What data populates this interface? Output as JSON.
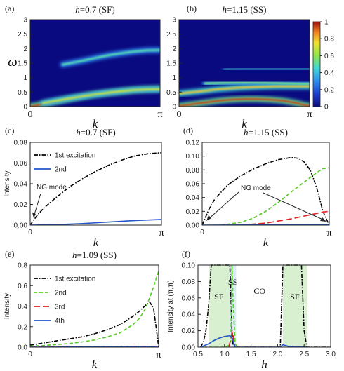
{
  "colorbar": {
    "ticks": [
      "1",
      "0.8",
      "0.6",
      "0.4",
      "0.2",
      "0"
    ]
  },
  "chart_data": [
    {
      "panel": "(a)",
      "type": "heatmap",
      "title": "h=0.7 (SF)",
      "xlabel": "k",
      "ylabel": "ω",
      "x_ticks": [
        "0",
        "π"
      ],
      "y_ticks": [
        "0",
        "0.5",
        "1",
        "1.5",
        "2",
        "2.5",
        "3"
      ],
      "ylim": [
        0,
        3
      ],
      "bands": [
        {
          "x": [
            0,
            0.1,
            0.2,
            0.3,
            0.4,
            0.5,
            0.6,
            0.7,
            0.8,
            0.9,
            1.0
          ],
          "y": [
            0,
            0.09,
            0.18,
            0.27,
            0.35,
            0.42,
            0.48,
            0.53,
            0.57,
            0.6,
            0.61
          ],
          "intensity": 0.95
        },
        {
          "x": [
            0.1,
            0.2,
            0.3,
            0.4,
            0.5,
            0.6,
            0.7,
            0.8,
            0.9,
            1.0
          ],
          "y": [
            0.12,
            0.2,
            0.28,
            0.35,
            0.42,
            0.48,
            0.53,
            0.57,
            0.59,
            0.6
          ],
          "intensity": 0.7
        },
        {
          "x": [
            0.25,
            0.4,
            0.5,
            0.6,
            0.7,
            0.8,
            0.9,
            1.0
          ],
          "y": [
            1.45,
            1.58,
            1.68,
            1.77,
            1.84,
            1.9,
            1.94,
            1.95
          ],
          "intensity": 0.5
        }
      ]
    },
    {
      "panel": "(b)",
      "type": "heatmap",
      "title": "h=1.15 (SS)",
      "xlabel": "k",
      "ylabel": "",
      "x_ticks": [
        "0",
        "π"
      ],
      "y_ticks": [
        "0",
        "0.5",
        "1",
        "1.5",
        "2",
        "2.5",
        "3"
      ],
      "ylim": [
        0,
        3
      ],
      "colorbar_range": [
        0,
        1
      ],
      "bands": [
        {
          "x": [
            0,
            0.1,
            0.2,
            0.3,
            0.4,
            0.5,
            0.6,
            0.7,
            0.8,
            0.9,
            0.95,
            1.0
          ],
          "y": [
            0.02,
            0.08,
            0.14,
            0.2,
            0.24,
            0.26,
            0.26,
            0.24,
            0.2,
            0.12,
            0.06,
            0.02
          ],
          "intensity": 0.95
        },
        {
          "x": [
            0,
            0.15,
            0.3,
            0.45,
            0.6,
            0.75,
            0.9,
            1.0
          ],
          "y": [
            0.45,
            0.52,
            0.6,
            0.65,
            0.68,
            0.7,
            0.7,
            0.7
          ],
          "intensity": 0.8
        },
        {
          "x": [
            0.2,
            0.35,
            0.5,
            0.65,
            0.8,
            0.95,
            1.0
          ],
          "y": [
            0.8,
            0.82,
            0.83,
            0.82,
            0.8,
            0.78,
            0.78
          ],
          "intensity": 0.55
        },
        {
          "x": [
            0.35,
            0.5,
            0.7,
            0.9,
            1.0
          ],
          "y": [
            1.28,
            1.3,
            1.3,
            1.3,
            1.3
          ],
          "intensity": 0.45
        }
      ]
    },
    {
      "panel": "(c)",
      "type": "line",
      "title": "h=0.7 (SF)",
      "xlabel": "k",
      "ylabel": "Intensity",
      "x_ticks": [
        "0",
        "π"
      ],
      "y_ticks": [
        "0.00",
        "0.02",
        "0.04",
        "0.06",
        "0.08"
      ],
      "xlim": [
        0,
        1
      ],
      "ylim": [
        0,
        0.08
      ],
      "annotation": "NG mode",
      "series": [
        {
          "name": "1st excitation",
          "style": "dashdot",
          "color": "#000000",
          "x": [
            0,
            0.05,
            0.1,
            0.2,
            0.3,
            0.4,
            0.5,
            0.6,
            0.7,
            0.8,
            0.9,
            1.0
          ],
          "values": [
            0,
            0.009,
            0.016,
            0.027,
            0.037,
            0.045,
            0.052,
            0.058,
            0.063,
            0.067,
            0.069,
            0.07
          ]
        },
        {
          "name": "2nd",
          "style": "solid",
          "color": "#2255cc",
          "x": [
            0,
            0.2,
            0.4,
            0.6,
            0.8,
            1.0
          ],
          "values": [
            0,
            0.0005,
            0.0015,
            0.003,
            0.0045,
            0.0055
          ]
        }
      ]
    },
    {
      "panel": "(d)",
      "type": "line",
      "title": "h=1.15 (SS)",
      "xlabel": "k",
      "ylabel": "",
      "x_ticks": [
        "0",
        "π"
      ],
      "y_ticks": [
        "0.00",
        "0.02",
        "0.04",
        "0.06",
        "0.08",
        "0.10",
        "0.12"
      ],
      "xlim": [
        0,
        1
      ],
      "ylim": [
        0,
        0.12
      ],
      "annotation": "NG mode",
      "series": [
        {
          "name": "1st",
          "style": "dashdot",
          "color": "#000000",
          "x": [
            0,
            0.05,
            0.1,
            0.2,
            0.3,
            0.4,
            0.5,
            0.6,
            0.7,
            0.75,
            0.8,
            0.85,
            0.9,
            0.95,
            1.0
          ],
          "values": [
            0,
            0.022,
            0.038,
            0.058,
            0.071,
            0.081,
            0.089,
            0.095,
            0.098,
            0.097,
            0.092,
            0.08,
            0.055,
            0.02,
            0.0
          ]
        },
        {
          "name": "2nd",
          "style": "dashed",
          "color": "#55cc22",
          "x": [
            0.15,
            0.3,
            0.4,
            0.5,
            0.6,
            0.7,
            0.8,
            0.9,
            0.95,
            1.0
          ],
          "values": [
            0,
            0.004,
            0.01,
            0.02,
            0.033,
            0.048,
            0.062,
            0.076,
            0.082,
            0.083
          ]
        },
        {
          "name": "3rd",
          "style": "longdash",
          "color": "#dd2222",
          "x": [
            0.3,
            0.5,
            0.6,
            0.7,
            0.8,
            0.9,
            0.95,
            1.0
          ],
          "values": [
            0,
            0.003,
            0.006,
            0.009,
            0.013,
            0.017,
            0.019,
            0.02
          ]
        },
        {
          "name": "4th",
          "style": "solid",
          "color": "#2255cc",
          "x": [
            0,
            0.5,
            1.0
          ],
          "values": [
            0,
            0.0003,
            0.001
          ]
        }
      ]
    },
    {
      "panel": "(e)",
      "type": "line",
      "title": "h=1.09 (SS)",
      "xlabel": "k",
      "ylabel": "Intensity",
      "x_ticks": [
        "0",
        "π"
      ],
      "y_ticks": [
        "0.0",
        "0.2",
        "0.4",
        "0.6",
        "0.8"
      ],
      "xlim": [
        0,
        1
      ],
      "ylim": [
        0,
        0.8
      ],
      "series": [
        {
          "name": "1st excitation",
          "style": "dashdot",
          "color": "#000000",
          "x": [
            0,
            0.1,
            0.2,
            0.3,
            0.4,
            0.5,
            0.6,
            0.7,
            0.8,
            0.85,
            0.9,
            0.93,
            0.96,
            0.98,
            1.0
          ],
          "values": [
            0.02,
            0.04,
            0.06,
            0.08,
            0.1,
            0.13,
            0.17,
            0.22,
            0.3,
            0.35,
            0.41,
            0.44,
            0.38,
            0.2,
            0.0
          ]
        },
        {
          "name": "2nd",
          "style": "dashed",
          "color": "#55cc22",
          "x": [
            0,
            0.1,
            0.2,
            0.3,
            0.4,
            0.5,
            0.6,
            0.7,
            0.8,
            0.85,
            0.9,
            0.95,
            1.0
          ],
          "values": [
            0.01,
            0.015,
            0.025,
            0.035,
            0.05,
            0.07,
            0.1,
            0.14,
            0.22,
            0.28,
            0.38,
            0.55,
            0.74
          ]
        },
        {
          "name": "3rd",
          "style": "longdash",
          "color": "#dd2222",
          "x": [
            0,
            0.5,
            0.8,
            1.0
          ],
          "values": [
            0,
            0.003,
            0.006,
            0.008
          ]
        },
        {
          "name": "4th",
          "style": "solid",
          "color": "#2255cc",
          "x": [
            0,
            0.5,
            1.0
          ],
          "values": [
            0,
            0.002,
            0.003
          ]
        }
      ]
    },
    {
      "panel": "(f)",
      "type": "line",
      "title": "",
      "xlabel": "h",
      "ylabel": "Intensity at (π,π)",
      "x_ticks": [
        "0.5",
        "1.0",
        "1.5",
        "2.0",
        "2.5",
        "3.0"
      ],
      "y_ticks": [
        "0.00",
        "0.02",
        "0.04",
        "0.06",
        "0.08",
        "0.10"
      ],
      "xlim": [
        0.5,
        3.0
      ],
      "ylim": [
        0,
        0.1
      ],
      "regions": [
        {
          "label": "SF",
          "from": 0.7,
          "to": 1.09,
          "color": "#d8f0d0"
        },
        {
          "label": "SS",
          "from": 1.09,
          "to": 1.22,
          "color": "#d8ecf4"
        },
        {
          "label": "CO",
          "from": 1.22,
          "to": 2.1,
          "color": "#ffffff"
        },
        {
          "label": "SF",
          "from": 2.1,
          "to": 2.55,
          "color": "#d8f0d0"
        }
      ],
      "series": [
        {
          "name": "1st",
          "style": "dashdot",
          "color": "#000000",
          "x": [
            0.55,
            0.6,
            0.65,
            0.7,
            0.75,
            0.8,
            0.9,
            1.0,
            1.05,
            1.1,
            1.12,
            1.14,
            1.16,
            1.2,
            1.3,
            2.0,
            2.05,
            2.1,
            2.2,
            2.3,
            2.4,
            2.45,
            2.5,
            2.55,
            3.0
          ],
          "values": [
            0,
            0.006,
            0.02,
            0.05,
            0.1,
            0.1,
            0.1,
            0.1,
            0.1,
            0.1,
            0.06,
            0.02,
            0.004,
            0,
            0,
            0,
            0,
            0.1,
            0.1,
            0.1,
            0.1,
            0.1,
            0.02,
            0,
            0
          ]
        },
        {
          "name": "2nd",
          "style": "dashed",
          "color": "#55cc22",
          "x": [
            0.6,
            1.0,
            1.08,
            1.12,
            1.14,
            1.16,
            1.2,
            1.25
          ],
          "values": [
            0,
            0,
            0.002,
            0.008,
            0.1,
            0.06,
            0.004,
            0
          ]
        },
        {
          "name": "3rd",
          "style": "longdash",
          "color": "#dd2222",
          "x": [
            1.08,
            1.12,
            1.14,
            1.16,
            1.18,
            1.2
          ],
          "values": [
            0,
            0.01,
            0.018,
            0.015,
            0.006,
            0
          ]
        },
        {
          "name": "4th",
          "style": "solid",
          "color": "#2255cc",
          "x": [
            0.55,
            0.7,
            0.8,
            0.9,
            1.0,
            1.1,
            1.15,
            1.2,
            2.05,
            2.1,
            2.15,
            2.2,
            2.3,
            2.4,
            2.5,
            2.55
          ],
          "values": [
            0,
            0.004,
            0.008,
            0.011,
            0.013,
            0.014,
            0.01,
            0,
            0,
            0.003,
            0.002,
            0.001,
            0.0005,
            0.0003,
            0.0002,
            0
          ]
        }
      ]
    }
  ]
}
